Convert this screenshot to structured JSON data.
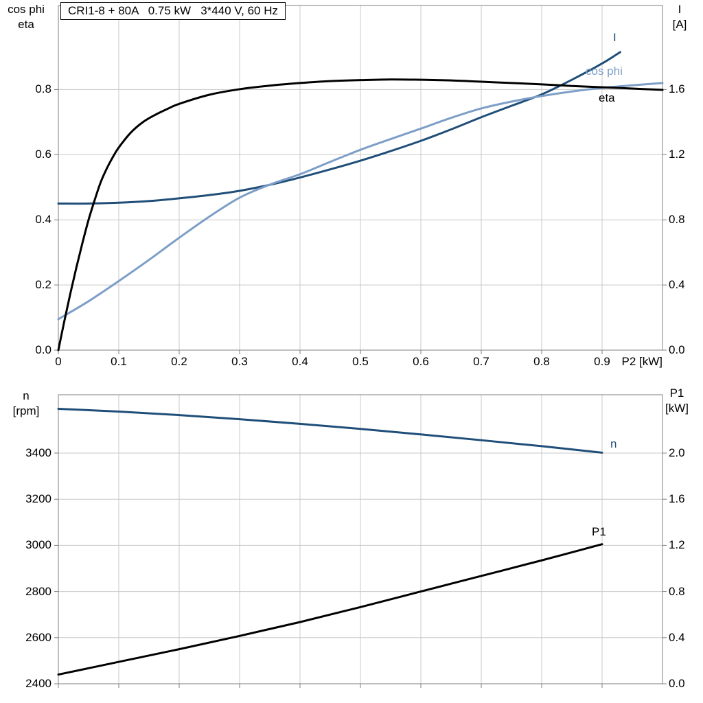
{
  "colors": {
    "dark_blue": "#1f4e79",
    "light_blue": "#7d9ec7",
    "curve_black": "#000000",
    "grid": "#c8c8c8",
    "frame": "#7f7f7f",
    "background": "#ffffff"
  },
  "chart_data": [
    {
      "type": "line",
      "title": "CRI1-8 + 80A   0.75 kW   3*440 V, 60 Hz",
      "grid": true,
      "legend_position": "end-of-curve",
      "x_axis": {
        "label": "P2 [kW]",
        "min": 0,
        "max": 1.0,
        "tick_values": [
          0,
          0.1,
          0.2,
          0.3,
          0.4,
          0.5,
          0.6,
          0.7,
          0.8,
          0.9
        ],
        "tick_labels": [
          "0",
          "0.1",
          "0.2",
          "0.3",
          "0.4",
          "0.5",
          "0.6",
          "0.7",
          "0.8",
          "0.9"
        ]
      },
      "left_axis": {
        "label_line1": "cos phi",
        "label_line2": "eta",
        "min": 0,
        "max": 1.058,
        "tick_values": [
          0,
          0.2,
          0.4,
          0.6,
          0.8
        ],
        "tick_labels": [
          "0.0",
          "0.2",
          "0.4",
          "0.6",
          "0.8"
        ]
      },
      "right_axis": {
        "label_line1": "I",
        "label_line2": "[A]",
        "min": 0,
        "max": 2.116,
        "tick_values": [
          0,
          0.4,
          0.8,
          1.2,
          1.6
        ],
        "tick_labels": [
          "0.0",
          "0.4",
          "0.8",
          "1.2",
          "1.6"
        ]
      },
      "series": [
        {
          "name": "I",
          "axis": "right",
          "color": "#1f4e79",
          "points": [
            [
              0,
              0.9
            ],
            [
              0.05,
              0.9
            ],
            [
              0.1,
              0.905
            ],
            [
              0.15,
              0.915
            ],
            [
              0.2,
              0.932
            ],
            [
              0.25,
              0.952
            ],
            [
              0.3,
              0.978
            ],
            [
              0.35,
              1.015
            ],
            [
              0.4,
              1.06
            ],
            [
              0.45,
              1.11
            ],
            [
              0.5,
              1.163
            ],
            [
              0.55,
              1.222
            ],
            [
              0.6,
              1.285
            ],
            [
              0.65,
              1.355
            ],
            [
              0.7,
              1.43
            ],
            [
              0.75,
              1.5
            ],
            [
              0.8,
              1.57
            ],
            [
              0.85,
              1.66
            ],
            [
              0.9,
              1.76
            ],
            [
              0.93,
              1.83
            ]
          ]
        },
        {
          "name": "cos phi",
          "axis": "left",
          "color": "#7d9ec7",
          "points": [
            [
              0,
              0.095
            ],
            [
              0.05,
              0.15
            ],
            [
              0.1,
              0.212
            ],
            [
              0.15,
              0.277
            ],
            [
              0.2,
              0.345
            ],
            [
              0.25,
              0.41
            ],
            [
              0.3,
              0.468
            ],
            [
              0.35,
              0.508
            ],
            [
              0.4,
              0.54
            ],
            [
              0.45,
              0.578
            ],
            [
              0.5,
              0.615
            ],
            [
              0.55,
              0.648
            ],
            [
              0.6,
              0.68
            ],
            [
              0.65,
              0.713
            ],
            [
              0.7,
              0.742
            ],
            [
              0.75,
              0.763
            ],
            [
              0.8,
              0.78
            ],
            [
              0.85,
              0.794
            ],
            [
              0.9,
              0.805
            ],
            [
              0.95,
              0.813
            ],
            [
              1.0,
              0.82
            ]
          ]
        },
        {
          "name": "eta",
          "axis": "left",
          "color": "#000000",
          "points": [
            [
              0,
              0
            ],
            [
              0.01,
              0.09
            ],
            [
              0.02,
              0.175
            ],
            [
              0.03,
              0.255
            ],
            [
              0.04,
              0.33
            ],
            [
              0.05,
              0.4
            ],
            [
              0.06,
              0.46
            ],
            [
              0.07,
              0.515
            ],
            [
              0.08,
              0.557
            ],
            [
              0.09,
              0.592
            ],
            [
              0.1,
              0.622
            ],
            [
              0.12,
              0.668
            ],
            [
              0.14,
              0.7
            ],
            [
              0.16,
              0.722
            ],
            [
              0.18,
              0.74
            ],
            [
              0.2,
              0.756
            ],
            [
              0.25,
              0.784
            ],
            [
              0.3,
              0.801
            ],
            [
              0.35,
              0.812
            ],
            [
              0.4,
              0.82
            ],
            [
              0.45,
              0.826
            ],
            [
              0.5,
              0.829
            ],
            [
              0.55,
              0.831
            ],
            [
              0.6,
              0.83
            ],
            [
              0.65,
              0.828
            ],
            [
              0.7,
              0.824
            ],
            [
              0.75,
              0.82
            ],
            [
              0.8,
              0.816
            ],
            [
              0.85,
              0.811
            ],
            [
              0.9,
              0.807
            ],
            [
              0.95,
              0.803
            ],
            [
              1.0,
              0.799
            ]
          ]
        }
      ]
    },
    {
      "type": "line",
      "title": "",
      "grid": true,
      "legend_position": "end-of-curve",
      "x_axis": {
        "label": "",
        "min": 0,
        "max": 1.0,
        "tick_values": [
          0,
          0.1,
          0.2,
          0.3,
          0.4,
          0.5,
          0.6,
          0.7,
          0.8,
          0.9
        ],
        "tick_labels": []
      },
      "left_axis": {
        "label_line1": "n",
        "label_line2": "[rpm]",
        "min": 2400,
        "max": 3653,
        "tick_values": [
          2400,
          2600,
          2800,
          3000,
          3200,
          3400
        ],
        "tick_labels": [
          "2400",
          "2600",
          "2800",
          "3000",
          "3200",
          "3400"
        ]
      },
      "right_axis": {
        "label_line1": "P1",
        "label_line2": "[kW]",
        "min": 0,
        "max": 2.506,
        "tick_values": [
          0,
          0.4,
          0.8,
          1.2,
          1.6,
          2.0
        ],
        "tick_labels": [
          "0.0",
          "0.4",
          "0.8",
          "1.2",
          "1.6",
          "2.0"
        ]
      },
      "series": [
        {
          "name": "n",
          "axis": "left",
          "color": "#1f4e79",
          "points": [
            [
              0,
              3592
            ],
            [
              0.1,
              3580
            ],
            [
              0.2,
              3565
            ],
            [
              0.3,
              3547
            ],
            [
              0.4,
              3527
            ],
            [
              0.5,
              3505
            ],
            [
              0.6,
              3481
            ],
            [
              0.7,
              3456
            ],
            [
              0.8,
              3430
            ],
            [
              0.9,
              3402
            ]
          ]
        },
        {
          "name": "P1",
          "axis": "right",
          "color": "#000000",
          "points": [
            [
              0,
              0.08
            ],
            [
              0.1,
              0.19
            ],
            [
              0.2,
              0.3
            ],
            [
              0.3,
              0.415
            ],
            [
              0.4,
              0.535
            ],
            [
              0.5,
              0.665
            ],
            [
              0.6,
              0.8
            ],
            [
              0.7,
              0.935
            ],
            [
              0.8,
              1.07
            ],
            [
              0.9,
              1.21
            ]
          ]
        }
      ]
    }
  ]
}
